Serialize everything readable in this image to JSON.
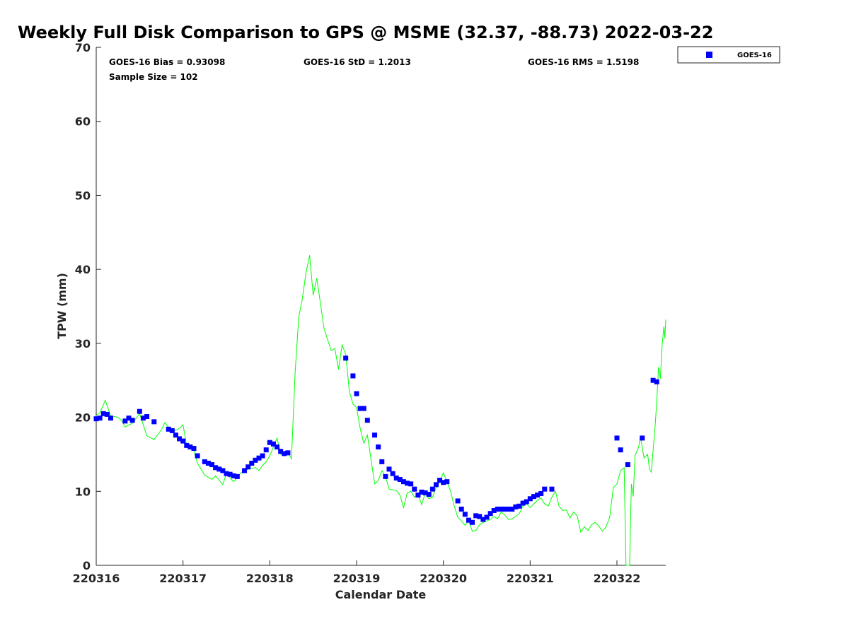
{
  "chart_data": {
    "type": "scatter",
    "title": "Weekly Full Disk Comparison to GPS @ MSME (32.37, -88.73) 2022-03-22",
    "xlabel": "Calendar Date",
    "ylabel": "TPW (mm)",
    "xlim": [
      "2022-03-16 00:00",
      "2022-03-22 13:30"
    ],
    "ylim": [
      0,
      70
    ],
    "x_ticks": [
      "220316",
      "220317",
      "220318",
      "220319",
      "220320",
      "220321",
      "220322"
    ],
    "y_ticks": [
      "0",
      "10",
      "20",
      "30",
      "40",
      "50",
      "60",
      "70"
    ],
    "grid": false,
    "legend": {
      "placement": "top-right-outside",
      "entries": [
        "GOES-16"
      ]
    },
    "stats": {
      "bias": "GOES-16 Bias = 0.93098",
      "std": "GOES-16 StD = 1.2013",
      "rms": "GOES-16 RMS = 1.5198",
      "sample": "Sample Size = 102"
    },
    "colors": {
      "goes": "#0000ff",
      "gps": "#00ff00"
    },
    "series": [
      {
        "name": "GOES-16",
        "marker": "square",
        "points": [
          [
            "2022-03-16 00:00",
            19.8
          ],
          [
            "2022-03-16 01:00",
            19.9
          ],
          [
            "2022-03-16 02:00",
            20.5
          ],
          [
            "2022-03-16 03:00",
            20.4
          ],
          [
            "2022-03-16 04:00",
            19.9
          ],
          [
            "2022-03-16 08:00",
            19.5
          ],
          [
            "2022-03-16 09:00",
            19.9
          ],
          [
            "2022-03-16 10:00",
            19.6
          ],
          [
            "2022-03-16 12:00",
            20.8
          ],
          [
            "2022-03-16 13:00",
            19.9
          ],
          [
            "2022-03-16 14:00",
            20.1
          ],
          [
            "2022-03-16 16:00",
            19.4
          ],
          [
            "2022-03-16 20:00",
            18.4
          ],
          [
            "2022-03-16 21:00",
            18.2
          ],
          [
            "2022-03-16 22:00",
            17.6
          ],
          [
            "2022-03-16 23:00",
            17.1
          ],
          [
            "2022-03-17 00:00",
            16.8
          ],
          [
            "2022-03-17 01:00",
            16.2
          ],
          [
            "2022-03-17 02:00",
            16.0
          ],
          [
            "2022-03-17 03:00",
            15.8
          ],
          [
            "2022-03-17 04:00",
            14.8
          ],
          [
            "2022-03-17 06:00",
            14.0
          ],
          [
            "2022-03-17 07:00",
            13.8
          ],
          [
            "2022-03-17 08:00",
            13.6
          ],
          [
            "2022-03-17 09:00",
            13.2
          ],
          [
            "2022-03-17 10:00",
            13.0
          ],
          [
            "2022-03-17 11:00",
            12.8
          ],
          [
            "2022-03-17 12:00",
            12.4
          ],
          [
            "2022-03-17 13:00",
            12.3
          ],
          [
            "2022-03-17 14:00",
            12.1
          ],
          [
            "2022-03-17 15:00",
            12.0
          ],
          [
            "2022-03-17 17:00",
            12.8
          ],
          [
            "2022-03-17 18:00",
            13.3
          ],
          [
            "2022-03-17 19:00",
            13.8
          ],
          [
            "2022-03-17 20:00",
            14.2
          ],
          [
            "2022-03-17 21:00",
            14.5
          ],
          [
            "2022-03-17 22:00",
            14.8
          ],
          [
            "2022-03-17 23:00",
            15.6
          ],
          [
            "2022-03-18 00:00",
            16.6
          ],
          [
            "2022-03-18 01:00",
            16.4
          ],
          [
            "2022-03-18 02:00",
            16.0
          ],
          [
            "2022-03-18 03:00",
            15.4
          ],
          [
            "2022-03-18 04:00",
            15.1
          ],
          [
            "2022-03-18 05:00",
            15.2
          ],
          [
            "2022-03-18 21:00",
            28.0
          ],
          [
            "2022-03-18 23:00",
            25.6
          ],
          [
            "2022-03-19 00:00",
            23.2
          ],
          [
            "2022-03-19 01:00",
            21.2
          ],
          [
            "2022-03-19 02:00",
            21.2
          ],
          [
            "2022-03-19 03:00",
            19.6
          ],
          [
            "2022-03-19 05:00",
            17.6
          ],
          [
            "2022-03-19 06:00",
            16.0
          ],
          [
            "2022-03-19 07:00",
            14.0
          ],
          [
            "2022-03-19 08:00",
            12.0
          ],
          [
            "2022-03-19 09:00",
            13.0
          ],
          [
            "2022-03-19 10:00",
            12.4
          ],
          [
            "2022-03-19 11:00",
            11.8
          ],
          [
            "2022-03-19 12:00",
            11.6
          ],
          [
            "2022-03-19 13:00",
            11.3
          ],
          [
            "2022-03-19 14:00",
            11.1
          ],
          [
            "2022-03-19 15:00",
            11.0
          ],
          [
            "2022-03-19 16:00",
            10.3
          ],
          [
            "2022-03-19 17:00",
            9.5
          ],
          [
            "2022-03-19 18:00",
            9.9
          ],
          [
            "2022-03-19 19:00",
            9.8
          ],
          [
            "2022-03-19 20:00",
            9.6
          ],
          [
            "2022-03-19 21:00",
            10.3
          ],
          [
            "2022-03-19 22:00",
            10.9
          ],
          [
            "2022-03-19 23:00",
            11.5
          ],
          [
            "2022-03-20 00:00",
            11.2
          ],
          [
            "2022-03-20 01:00",
            11.3
          ],
          [
            "2022-03-20 04:00",
            8.7
          ],
          [
            "2022-03-20 05:00",
            7.6
          ],
          [
            "2022-03-20 06:00",
            6.9
          ],
          [
            "2022-03-20 07:00",
            6.1
          ],
          [
            "2022-03-20 08:00",
            5.8
          ],
          [
            "2022-03-20 09:00",
            6.7
          ],
          [
            "2022-03-20 10:00",
            6.6
          ],
          [
            "2022-03-20 11:00",
            6.2
          ],
          [
            "2022-03-20 12:00",
            6.5
          ],
          [
            "2022-03-20 13:00",
            7.0
          ],
          [
            "2022-03-20 14:00",
            7.4
          ],
          [
            "2022-03-20 15:00",
            7.6
          ],
          [
            "2022-03-20 16:00",
            7.6
          ],
          [
            "2022-03-20 17:00",
            7.6
          ],
          [
            "2022-03-20 18:00",
            7.6
          ],
          [
            "2022-03-20 19:00",
            7.6
          ],
          [
            "2022-03-20 20:00",
            7.9
          ],
          [
            "2022-03-20 21:00",
            8.0
          ],
          [
            "2022-03-20 22:00",
            8.4
          ],
          [
            "2022-03-20 23:00",
            8.6
          ],
          [
            "2022-03-21 00:00",
            9.0
          ],
          [
            "2022-03-21 01:00",
            9.3
          ],
          [
            "2022-03-21 02:00",
            9.5
          ],
          [
            "2022-03-21 03:00",
            9.7
          ],
          [
            "2022-03-21 04:00",
            10.3
          ],
          [
            "2022-03-21 06:00",
            10.3
          ],
          [
            "2022-03-22 00:00",
            17.2
          ],
          [
            "2022-03-22 01:00",
            15.6
          ],
          [
            "2022-03-22 03:00",
            13.6
          ],
          [
            "2022-03-22 07:00",
            17.2
          ],
          [
            "2022-03-22 10:00",
            25.0
          ],
          [
            "2022-03-22 11:00",
            24.8
          ]
        ]
      },
      {
        "name": "GPS",
        "line": true,
        "points": [
          [
            "2022-03-16 00:00",
            20.3
          ],
          [
            "2022-03-16 01:00",
            20.6
          ],
          [
            "2022-03-16 02:30",
            22.3
          ],
          [
            "2022-03-16 04:00",
            20.2
          ],
          [
            "2022-03-16 06:00",
            20.0
          ],
          [
            "2022-03-16 07:00",
            19.6
          ],
          [
            "2022-03-16 08:00",
            18.7
          ],
          [
            "2022-03-16 10:00",
            19.2
          ],
          [
            "2022-03-16 12:00",
            20.5
          ],
          [
            "2022-03-16 14:00",
            17.5
          ],
          [
            "2022-03-16 16:00",
            17.0
          ],
          [
            "2022-03-16 18:00",
            18.3
          ],
          [
            "2022-03-16 19:00",
            19.3
          ],
          [
            "2022-03-16 21:00",
            18.0
          ],
          [
            "2022-03-16 23:00",
            18.5
          ],
          [
            "2022-03-17 00:00",
            19.0
          ],
          [
            "2022-03-17 01:00",
            16.2
          ],
          [
            "2022-03-17 02:00",
            16.0
          ],
          [
            "2022-03-17 03:00",
            15.5
          ],
          [
            "2022-03-17 04:00",
            13.8
          ],
          [
            "2022-03-17 06:00",
            12.2
          ],
          [
            "2022-03-17 08:00",
            11.6
          ],
          [
            "2022-03-17 09:00",
            12.1
          ],
          [
            "2022-03-17 11:00",
            10.9
          ],
          [
            "2022-03-17 12:00",
            12.4
          ],
          [
            "2022-03-17 14:00",
            11.3
          ],
          [
            "2022-03-17 15:00",
            11.9
          ],
          [
            "2022-03-17 16:00",
            12.5
          ],
          [
            "2022-03-17 18:00",
            13.0
          ],
          [
            "2022-03-17 20:00",
            13.2
          ],
          [
            "2022-03-17 21:00",
            12.8
          ],
          [
            "2022-03-17 22:00",
            13.5
          ],
          [
            "2022-03-17 23:00",
            14.0
          ],
          [
            "2022-03-18 00:00",
            14.8
          ],
          [
            "2022-03-18 02:00",
            17.2
          ],
          [
            "2022-03-18 03:00",
            15.0
          ],
          [
            "2022-03-18 05:00",
            15.3
          ],
          [
            "2022-03-18 06:00",
            14.4
          ],
          [
            "2022-03-18 07:00",
            26.0
          ],
          [
            "2022-03-18 08:00",
            33.5
          ],
          [
            "2022-03-18 09:00",
            36.0
          ],
          [
            "2022-03-18 10:00",
            39.5
          ],
          [
            "2022-03-18 11:00",
            41.9
          ],
          [
            "2022-03-18 12:00",
            36.5
          ],
          [
            "2022-03-18 13:00",
            38.8
          ],
          [
            "2022-03-18 15:00",
            32.0
          ],
          [
            "2022-03-18 17:00",
            29.0
          ],
          [
            "2022-03-18 18:00",
            29.3
          ],
          [
            "2022-03-18 19:00",
            26.5
          ],
          [
            "2022-03-18 20:00",
            29.8
          ],
          [
            "2022-03-18 21:00",
            28.5
          ],
          [
            "2022-03-18 22:00",
            23.5
          ],
          [
            "2022-03-18 23:00",
            21.8
          ],
          [
            "2022-03-19 00:00",
            21.3
          ],
          [
            "2022-03-19 01:00",
            18.5
          ],
          [
            "2022-03-19 02:00",
            16.5
          ],
          [
            "2022-03-19 03:00",
            17.6
          ],
          [
            "2022-03-19 05:00",
            11.0
          ],
          [
            "2022-03-19 06:00",
            11.5
          ],
          [
            "2022-03-19 07:00",
            12.8
          ],
          [
            "2022-03-19 08:00",
            12.0
          ],
          [
            "2022-03-19 09:00",
            10.3
          ],
          [
            "2022-03-19 11:00",
            10.1
          ],
          [
            "2022-03-19 12:00",
            9.5
          ],
          [
            "2022-03-19 13:00",
            7.8
          ],
          [
            "2022-03-19 14:00",
            9.8
          ],
          [
            "2022-03-19 15:00",
            10.0
          ],
          [
            "2022-03-19 16:00",
            9.2
          ],
          [
            "2022-03-19 17:00",
            9.5
          ],
          [
            "2022-03-19 18:00",
            8.2
          ],
          [
            "2022-03-19 19:00",
            9.8
          ],
          [
            "2022-03-19 20:00",
            9.0
          ],
          [
            "2022-03-19 21:00",
            9.2
          ],
          [
            "2022-03-19 22:00",
            10.5
          ],
          [
            "2022-03-19 23:00",
            11.3
          ],
          [
            "2022-03-20 00:00",
            12.5
          ],
          [
            "2022-03-20 01:00",
            11.3
          ],
          [
            "2022-03-20 02:00",
            10.0
          ],
          [
            "2022-03-20 03:00",
            8.0
          ],
          [
            "2022-03-20 04:00",
            6.5
          ],
          [
            "2022-03-20 05:00",
            6.0
          ],
          [
            "2022-03-20 06:00",
            5.4
          ],
          [
            "2022-03-20 07:00",
            6.0
          ],
          [
            "2022-03-20 08:00",
            4.6
          ],
          [
            "2022-03-20 09:00",
            4.7
          ],
          [
            "2022-03-20 10:00",
            5.5
          ],
          [
            "2022-03-20 11:00",
            5.8
          ],
          [
            "2022-03-20 12:00",
            6.0
          ],
          [
            "2022-03-20 13:00",
            6.2
          ],
          [
            "2022-03-20 14:00",
            6.6
          ],
          [
            "2022-03-20 15:00",
            6.3
          ],
          [
            "2022-03-20 16:00",
            7.2
          ],
          [
            "2022-03-20 17:00",
            6.8
          ],
          [
            "2022-03-20 18:00",
            6.2
          ],
          [
            "2022-03-20 19:00",
            6.3
          ],
          [
            "2022-03-20 20:00",
            6.6
          ],
          [
            "2022-03-20 21:00",
            7.0
          ],
          [
            "2022-03-20 22:00",
            8.0
          ],
          [
            "2022-03-20 23:00",
            8.3
          ],
          [
            "2022-03-21 00:00",
            7.8
          ],
          [
            "2022-03-21 01:00",
            8.3
          ],
          [
            "2022-03-21 02:00",
            8.8
          ],
          [
            "2022-03-21 03:00",
            9.1
          ],
          [
            "2022-03-21 04:00",
            8.3
          ],
          [
            "2022-03-21 05:00",
            8.0
          ],
          [
            "2022-03-21 06:00",
            9.2
          ],
          [
            "2022-03-21 07:00",
            10.0
          ],
          [
            "2022-03-21 08:00",
            8.0
          ],
          [
            "2022-03-21 09:00",
            7.4
          ],
          [
            "2022-03-21 10:00",
            7.5
          ],
          [
            "2022-03-21 11:00",
            6.4
          ],
          [
            "2022-03-21 12:00",
            7.2
          ],
          [
            "2022-03-21 13:00",
            6.7
          ],
          [
            "2022-03-21 14:00",
            4.5
          ],
          [
            "2022-03-21 15:00",
            5.2
          ],
          [
            "2022-03-21 16:00",
            4.7
          ],
          [
            "2022-03-21 17:00",
            5.5
          ],
          [
            "2022-03-21 18:00",
            5.8
          ],
          [
            "2022-03-21 19:00",
            5.3
          ],
          [
            "2022-03-21 20:00",
            4.6
          ],
          [
            "2022-03-21 21:00",
            5.2
          ],
          [
            "2022-03-21 22:00",
            6.5
          ],
          [
            "2022-03-21 23:00",
            10.5
          ],
          [
            "2022-03-22 00:00",
            11.0
          ],
          [
            "2022-03-22 01:00",
            12.8
          ],
          [
            "2022-03-22 02:00",
            13.2
          ],
          [
            "2022-03-22 02:30",
            0.0
          ],
          [
            "2022-03-22 03:30",
            0.0
          ],
          [
            "2022-03-22 04:00",
            11.0
          ],
          [
            "2022-03-22 04:30",
            9.3
          ],
          [
            "2022-03-22 05:00",
            14.8
          ],
          [
            "2022-03-22 06:00",
            16.0
          ],
          [
            "2022-03-22 06:30",
            17.4
          ],
          [
            "2022-03-22 07:30",
            14.5
          ],
          [
            "2022-03-22 08:30",
            15.0
          ],
          [
            "2022-03-22 09:00",
            13.0
          ],
          [
            "2022-03-22 09:30",
            12.6
          ],
          [
            "2022-03-22 10:00",
            15.5
          ],
          [
            "2022-03-22 10:30",
            18.5
          ],
          [
            "2022-03-22 11:00",
            22.0
          ],
          [
            "2022-03-22 11:30",
            26.8
          ],
          [
            "2022-03-22 12:00",
            25.2
          ],
          [
            "2022-03-22 12:30",
            29.8
          ],
          [
            "2022-03-22 13:00",
            32.3
          ],
          [
            "2022-03-22 13:15",
            30.7
          ],
          [
            "2022-03-22 13:30",
            33.2
          ]
        ]
      }
    ]
  }
}
